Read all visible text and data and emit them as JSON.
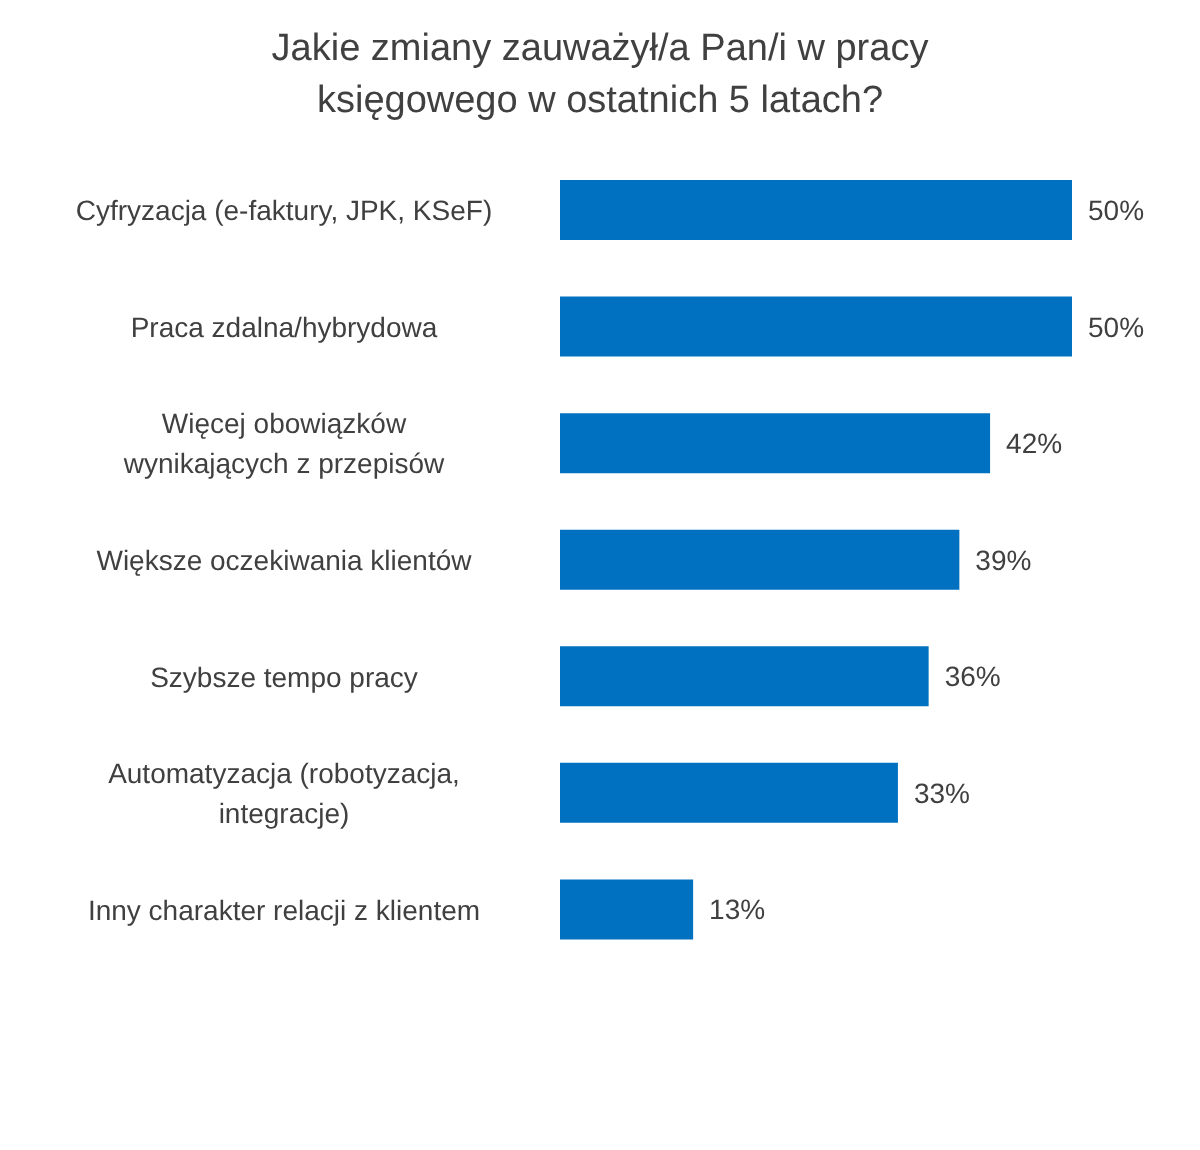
{
  "chart_data": {
    "type": "bar",
    "orientation": "horizontal",
    "title": "Jakie zmiany zauważył/a Pan/i w pracy księgowego w ostatnich 5 latach?",
    "categories": [
      "Cyfryzacja (e-faktury, JPK, KSeF)",
      "Praca zdalna/hybrydowa",
      "Więcej obowiązków\nwynikających z przepisów",
      "Większe oczekiwania klientów",
      "Szybsze tempo pracy",
      "Automatyzacja (robotyzacja,\nintegracje)",
      "Inny charakter relacji z klientem"
    ],
    "values": [
      50,
      50,
      42,
      39,
      36,
      33,
      13
    ],
    "value_labels": [
      "50%",
      "50%",
      "42%",
      "39%",
      "36%",
      "33%",
      "13%"
    ],
    "color": "#0070c0"
  }
}
